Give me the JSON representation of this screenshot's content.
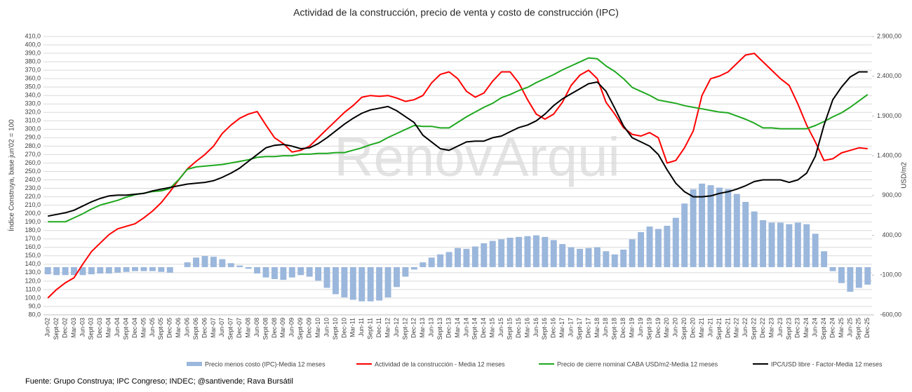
{
  "chart_data": {
    "type": "combo",
    "title": "Actividad de la construcción, precio de venta y costo de construcción (IPC)",
    "y_label": "Índice Construya, base jun'02 = 100",
    "y2_label": "USD/m2",
    "source": "Fuente: Grupo Construya; IPC Congreso; INDEC; @santivende; Rava Bursátil",
    "watermark": "RenovArqui",
    "grid": true,
    "categories": [
      "Jun-02",
      "Sept-02",
      "Dec-02",
      "Mar-03",
      "Jun-03",
      "Sept-03",
      "Dec-03",
      "Mar-04",
      "Jun-04",
      "Sept-04",
      "Dec-04",
      "Mar-05",
      "Jun-05",
      "Sept-05",
      "Dec-05",
      "Mar-06",
      "Jun-06",
      "Sept-06",
      "Dec-06",
      "Mar-07",
      "Jun-07",
      "Sept-07",
      "Dec-07",
      "Mar-08",
      "Jun-08",
      "Sept-08",
      "Dec-08",
      "Mar-09",
      "Jun-09",
      "Sept-09",
      "Dec-09",
      "Mar-10",
      "Jun-10",
      "Sept-10",
      "Dec-10",
      "Mar-11",
      "Jun-11",
      "Sept-11",
      "Dec-11",
      "Mar-12",
      "Jun-12",
      "Sept-12",
      "Dec-12",
      "Mar-13",
      "Jun-13",
      "Sept-13",
      "Dec-13",
      "Mar-14",
      "Jun-14",
      "Sept-14",
      "Dec-14",
      "Mar-15",
      "Jun-15",
      "Sept-15",
      "Dec-15",
      "Mar-16",
      "Jun-16",
      "Sept-16",
      "Dec-16",
      "Mar-17",
      "Jun-17",
      "Sept-17",
      "Dec-17",
      "Mar-18",
      "Jun-18",
      "Sept-18",
      "Dec-18",
      "Mar-19",
      "Jun-19",
      "Sept-19",
      "Dec-19",
      "Mar-20",
      "Jun-20",
      "Sept-20",
      "Dec-20",
      "Mar-21",
      "Jun-21",
      "Sept-21",
      "Dec-21",
      "Mar-22",
      "Jun-22",
      "Sept-22",
      "Dec-22",
      "Mar-23",
      "Jun-23",
      "Sept-23",
      "Dec-23",
      "Mar-24",
      "Jun-24",
      "Sept-24",
      "Dec-24",
      "Mar-25",
      "Jun-25",
      "Sept-25",
      "Dec-25"
    ],
    "series": [
      {
        "name": "Precio menos costo (IPC)-Media 12 meses",
        "type": "bar",
        "axis": "y2",
        "color": "#9bb7dc",
        "values": [
          -90,
          -100,
          -100,
          -100,
          -100,
          -90,
          -80,
          -80,
          -70,
          -60,
          -50,
          -50,
          -50,
          -60,
          -70,
          0,
          60,
          120,
          140,
          130,
          100,
          50,
          20,
          -20,
          -80,
          -130,
          -150,
          -160,
          -130,
          -100,
          -120,
          -170,
          -260,
          -340,
          -380,
          -410,
          -430,
          -430,
          -420,
          -380,
          -250,
          -120,
          -30,
          60,
          120,
          160,
          190,
          240,
          230,
          260,
          300,
          330,
          350,
          370,
          380,
          390,
          400,
          380,
          340,
          290,
          250,
          230,
          240,
          250,
          200,
          160,
          220,
          350,
          440,
          510,
          480,
          520,
          620,
          800,
          980,
          1050,
          1030,
          1000,
          980,
          920,
          820,
          700,
          590,
          560,
          560,
          540,
          560,
          540,
          420,
          200,
          -50,
          -200,
          -310,
          -260,
          -220
        ]
      },
      {
        "name": "Actividad de la construcción - Media 12 meses",
        "type": "line",
        "axis": "y",
        "color": "#ff0000",
        "values": [
          100,
          110,
          118,
          124,
          140,
          155,
          165,
          175,
          182,
          185,
          188,
          195,
          203,
          213,
          226,
          240,
          253,
          262,
          270,
          280,
          295,
          305,
          313,
          318,
          321,
          305,
          290,
          283,
          273,
          275,
          280,
          290,
          300,
          310,
          320,
          328,
          338,
          340,
          339,
          340,
          337,
          333,
          335,
          340,
          355,
          365,
          368,
          360,
          345,
          338,
          343,
          357,
          368,
          368,
          355,
          335,
          318,
          312,
          318,
          332,
          352,
          364,
          370,
          360,
          332,
          318,
          302,
          294,
          292,
          296,
          290,
          260,
          263,
          278,
          298,
          340,
          360,
          363,
          368,
          378,
          388,
          390,
          380,
          370,
          360,
          352,
          330,
          305,
          285,
          263,
          265,
          272,
          275,
          278,
          277
        ]
      },
      {
        "name": "Precio de cierre nominal CABA USD/m2-Media 12 meses",
        "type": "line",
        "axis": "y2",
        "color": "#1fa81f",
        "values": [
          570,
          570,
          570,
          620,
          670,
          730,
          780,
          810,
          840,
          880,
          910,
          930,
          950,
          960,
          990,
          1100,
          1230,
          1260,
          1270,
          1280,
          1290,
          1310,
          1330,
          1350,
          1380,
          1390,
          1390,
          1400,
          1400,
          1420,
          1420,
          1430,
          1430,
          1440,
          1440,
          1470,
          1500,
          1540,
          1570,
          1630,
          1680,
          1730,
          1780,
          1770,
          1770,
          1750,
          1750,
          1820,
          1890,
          1950,
          2010,
          2060,
          2130,
          2170,
          2220,
          2260,
          2320,
          2370,
          2420,
          2480,
          2530,
          2580,
          2630,
          2620,
          2530,
          2460,
          2370,
          2260,
          2210,
          2160,
          2100,
          2080,
          2060,
          2030,
          2010,
          1990,
          1970,
          1950,
          1940,
          1900,
          1860,
          1810,
          1750,
          1750,
          1740,
          1740,
          1740,
          1740,
          1780,
          1830,
          1890,
          1940,
          2010,
          2090,
          2170
        ]
      },
      {
        "name": "IPC/USD libre - Factor-Media 12 meses",
        "type": "line",
        "axis": "y",
        "color": "#000000",
        "values": [
          197,
          199,
          201,
          204,
          209,
          214,
          218,
          221,
          222,
          222,
          223,
          224,
          227,
          229,
          231,
          233,
          235,
          236,
          237,
          239,
          243,
          248,
          254,
          262,
          270,
          278,
          281,
          282,
          280,
          277,
          278,
          283,
          290,
          298,
          306,
          313,
          319,
          323,
          325,
          327,
          322,
          315,
          308,
          293,
          285,
          277,
          275,
          280,
          285,
          286,
          286,
          290,
          292,
          297,
          302,
          305,
          310,
          318,
          328,
          336,
          342,
          348,
          354,
          356,
          345,
          325,
          304,
          290,
          285,
          280,
          270,
          252,
          236,
          226,
          220,
          220,
          221,
          224,
          226,
          229,
          233,
          238,
          240,
          240,
          240,
          237,
          240,
          248,
          268,
          305,
          335,
          350,
          362,
          368,
          368
        ]
      }
    ],
    "ylim": [
      80,
      410
    ],
    "yticks": [
      {
        "value": 80,
        "label": "80,0"
      },
      {
        "value": 90,
        "label": "90,0"
      },
      {
        "value": 100,
        "label": "100,0"
      },
      {
        "value": 110,
        "label": "110,0"
      },
      {
        "value": 120,
        "label": "120,0"
      },
      {
        "value": 130,
        "label": "130,0"
      },
      {
        "value": 140,
        "label": "140,0"
      },
      {
        "value": 150,
        "label": "150,0"
      },
      {
        "value": 160,
        "label": "160,0"
      },
      {
        "value": 170,
        "label": "170,0"
      },
      {
        "value": 180,
        "label": "180,0"
      },
      {
        "value": 190,
        "label": "190,0"
      },
      {
        "value": 200,
        "label": "200,0"
      },
      {
        "value": 210,
        "label": "210,0"
      },
      {
        "value": 220,
        "label": "220,0"
      },
      {
        "value": 230,
        "label": "230,0"
      },
      {
        "value": 240,
        "label": "240,0"
      },
      {
        "value": 250,
        "label": "250,0"
      },
      {
        "value": 260,
        "label": "260,0"
      },
      {
        "value": 270,
        "label": "270,0"
      },
      {
        "value": 280,
        "label": "280,0"
      },
      {
        "value": 290,
        "label": "290,0"
      },
      {
        "value": 300,
        "label": "300,0"
      },
      {
        "value": 310,
        "label": "310,0"
      },
      {
        "value": 320,
        "label": "320,0"
      },
      {
        "value": 330,
        "label": "330,0"
      },
      {
        "value": 340,
        "label": "340,0"
      },
      {
        "value": 350,
        "label": "350,0"
      },
      {
        "value": 360,
        "label": "360,0"
      },
      {
        "value": 370,
        "label": "370,0"
      },
      {
        "value": 380,
        "label": "380,0"
      },
      {
        "value": 390,
        "label": "390,0"
      },
      {
        "value": 400,
        "label": "400,0"
      },
      {
        "value": 410,
        "label": "410,0"
      }
    ],
    "y2lim": [
      -600,
      2900
    ],
    "y2ticks": [
      {
        "value": -600,
        "label": "-600,00"
      },
      {
        "value": -100,
        "label": "-100,00"
      },
      {
        "value": 400,
        "label": "400,00"
      },
      {
        "value": 900,
        "label": "900,00"
      },
      {
        "value": 1400,
        "label": "1.400,00"
      },
      {
        "value": 1900,
        "label": "1.900,00"
      },
      {
        "value": 2400,
        "label": "2.400,00"
      },
      {
        "value": 2900,
        "label": "2.900,00"
      }
    ]
  }
}
